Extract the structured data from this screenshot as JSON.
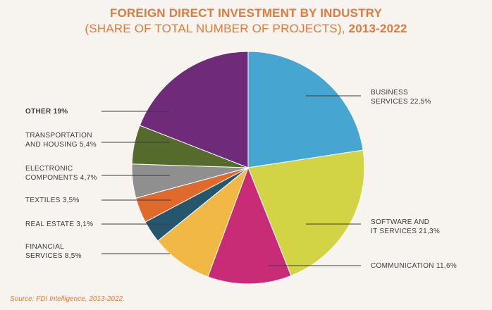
{
  "title_line1": "FOREIGN DIRECT INVESTMENT BY INDUSTRY",
  "title_line2_prefix": "(SHARE OF TOTAL NUMBER OF PROJECTS), ",
  "title_line2_years": "2013-2022",
  "source": "Source: FDI Intelligence, 2013-2022.",
  "chart_data": {
    "type": "pie",
    "title": "FOREIGN DIRECT INVESTMENT BY INDUSTRY (SHARE OF TOTAL NUMBER OF PROJECTS), 2013-2022",
    "slices": [
      {
        "label_lines": [
          "BUSINESS",
          "SERVICES 22,5%"
        ],
        "value": 22.5,
        "color": "#46a6d1"
      },
      {
        "label_lines": [
          "SOFTWARE AND",
          "IT SERVICES 21,3%"
        ],
        "value": 21.3,
        "color": "#d2d446"
      },
      {
        "label_lines": [
          "COMMUNICATION 11,6%"
        ],
        "value": 11.6,
        "color": "#c92c77"
      },
      {
        "label_lines": [
          "FINANCIAL",
          "SERVICES 8,5%"
        ],
        "value": 8.5,
        "color": "#f2b846"
      },
      {
        "label_lines": [
          "REAL ESTATE 3,1%"
        ],
        "value": 3.1,
        "color": "#24576e"
      },
      {
        "label_lines": [
          "TEXTILES 3,5%"
        ],
        "value": 3.5,
        "color": "#e06a2c"
      },
      {
        "label_lines": [
          "ELECTRONIC",
          "COMPONENTS 4,7%"
        ],
        "value": 4.7,
        "color": "#8f8f8f"
      },
      {
        "label_lines": [
          "TRANSPORTATION",
          "AND HOUSING 5,4%"
        ],
        "value": 5.4,
        "color": "#556b2c"
      },
      {
        "label_lines": [
          "OTHER 19%"
        ],
        "value": 19,
        "color": "#6f2a7a",
        "bold": true
      }
    ]
  }
}
